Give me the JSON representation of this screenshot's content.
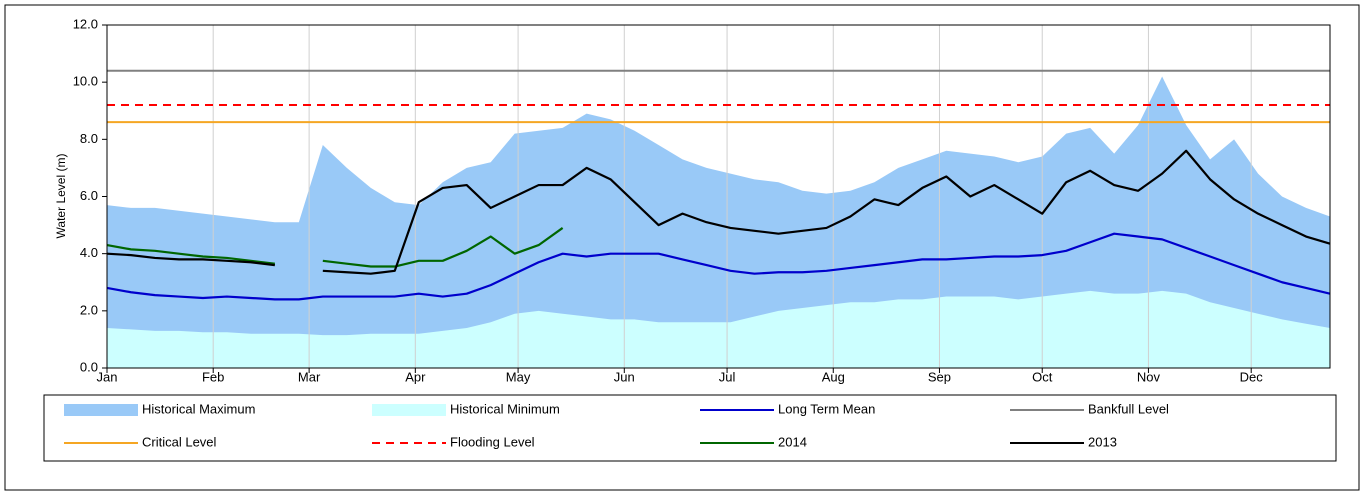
{
  "chart_data": {
    "type": "line",
    "y_label": "Water Level (m)",
    "x": [
      1,
      8,
      15,
      22,
      29,
      36,
      43,
      50,
      57,
      64,
      71,
      78,
      85,
      92,
      99,
      106,
      113,
      120,
      127,
      134,
      141,
      148,
      155,
      162,
      169,
      176,
      183,
      190,
      197,
      204,
      211,
      218,
      225,
      232,
      239,
      246,
      253,
      260,
      267,
      274,
      281,
      288,
      295,
      302,
      309,
      316,
      323,
      330,
      337,
      344,
      351,
      358
    ],
    "xlim": [
      1,
      358
    ],
    "xticks": [
      {
        "value": 1,
        "label": "Jan"
      },
      {
        "value": 32,
        "label": "Feb"
      },
      {
        "value": 60,
        "label": "Mar"
      },
      {
        "value": 91,
        "label": "Apr"
      },
      {
        "value": 121,
        "label": "May"
      },
      {
        "value": 152,
        "label": "Jun"
      },
      {
        "value": 182,
        "label": "Jul"
      },
      {
        "value": 213,
        "label": "Aug"
      },
      {
        "value": 244,
        "label": "Sep"
      },
      {
        "value": 274,
        "label": "Oct"
      },
      {
        "value": 305,
        "label": "Nov"
      },
      {
        "value": 335,
        "label": "Dec"
      }
    ],
    "ylim": [
      0,
      12
    ],
    "yticks": [
      {
        "value": 0,
        "label": "0.0"
      },
      {
        "value": 2,
        "label": "2.0"
      },
      {
        "value": 4,
        "label": "4.0"
      },
      {
        "value": 6,
        "label": "6.0"
      },
      {
        "value": 8,
        "label": "8.0"
      },
      {
        "value": 10,
        "label": "10.0"
      },
      {
        "value": 12,
        "label": "12.0"
      }
    ],
    "grid": "x",
    "series": [
      {
        "name": "Historical Maximum",
        "style": "area",
        "color": "#99c9f7",
        "values": [
          5.7,
          5.6,
          5.6,
          5.5,
          5.4,
          5.3,
          5.2,
          5.1,
          5.1,
          7.8,
          7.0,
          6.3,
          5.8,
          5.7,
          6.5,
          7.0,
          7.2,
          8.2,
          8.3,
          8.4,
          8.9,
          8.7,
          8.3,
          7.8,
          7.3,
          7.0,
          6.8,
          6.6,
          6.5,
          6.2,
          6.1,
          6.2,
          6.5,
          7.0,
          7.3,
          7.6,
          7.5,
          7.4,
          7.2,
          7.4,
          8.2,
          8.4,
          7.5,
          8.5,
          10.2,
          8.5,
          7.3,
          8.0,
          6.8,
          6.0,
          5.6,
          5.3
        ]
      },
      {
        "name": "Historical Minimum",
        "style": "area",
        "color": "#ccffff",
        "values": [
          1.4,
          1.35,
          1.3,
          1.3,
          1.25,
          1.25,
          1.2,
          1.2,
          1.2,
          1.15,
          1.15,
          1.2,
          1.2,
          1.2,
          1.3,
          1.4,
          1.6,
          1.9,
          2.0,
          1.9,
          1.8,
          1.7,
          1.7,
          1.6,
          1.6,
          1.6,
          1.6,
          1.8,
          2.0,
          2.1,
          2.2,
          2.3,
          2.3,
          2.4,
          2.4,
          2.5,
          2.5,
          2.5,
          2.4,
          2.5,
          2.6,
          2.7,
          2.6,
          2.6,
          2.7,
          2.6,
          2.3,
          2.1,
          1.9,
          1.7,
          1.55,
          1.4
        ]
      },
      {
        "name": "Long Term Mean",
        "style": "line",
        "color": "#0000cc",
        "values": [
          2.8,
          2.65,
          2.55,
          2.5,
          2.45,
          2.5,
          2.45,
          2.4,
          2.4,
          2.5,
          2.5,
          2.5,
          2.5,
          2.6,
          2.5,
          2.6,
          2.9,
          3.3,
          3.7,
          4.0,
          3.9,
          4.0,
          4.0,
          4.0,
          3.8,
          3.6,
          3.4,
          3.3,
          3.35,
          3.35,
          3.4,
          3.5,
          3.6,
          3.7,
          3.8,
          3.8,
          3.85,
          3.9,
          3.9,
          3.95,
          4.1,
          4.4,
          4.7,
          4.6,
          4.5,
          4.2,
          3.9,
          3.6,
          3.3,
          3.0,
          2.8,
          2.6
        ]
      },
      {
        "name": "Bankfull Level",
        "style": "hline",
        "color": "#808080",
        "value": 10.4
      },
      {
        "name": "Critical Level",
        "style": "hline",
        "color": "#f5a623",
        "value": 8.6
      },
      {
        "name": "Flooding Level",
        "style": "hline",
        "dashed": true,
        "color": "#ff0000",
        "value": 9.2
      },
      {
        "name": "2014",
        "style": "line",
        "color": "#006600",
        "values": [
          4.3,
          4.15,
          4.1,
          4.0,
          3.9,
          3.85,
          3.75,
          3.65,
          null,
          3.75,
          3.65,
          3.55,
          3.55,
          3.75,
          3.75,
          4.1,
          4.6,
          4.0,
          4.3,
          4.9,
          null,
          null,
          null,
          null,
          null,
          null,
          null,
          null,
          null,
          null,
          null,
          null,
          null,
          null,
          null,
          null,
          null,
          null,
          null,
          null,
          null,
          null,
          null,
          null,
          null,
          null,
          null,
          null,
          null,
          null,
          null,
          null
        ]
      },
      {
        "name": "2013",
        "style": "line",
        "color": "#000000",
        "values": [
          4.0,
          3.95,
          3.85,
          3.8,
          3.8,
          3.75,
          3.7,
          3.6,
          null,
          3.4,
          3.35,
          3.3,
          3.4,
          5.8,
          6.3,
          6.4,
          5.6,
          6.0,
          6.4,
          6.4,
          7.0,
          6.6,
          5.8,
          5.0,
          5.4,
          5.1,
          4.9,
          4.8,
          4.7,
          4.8,
          4.9,
          5.3,
          5.9,
          5.7,
          6.3,
          6.7,
          6.0,
          6.4,
          5.9,
          5.4,
          6.5,
          6.9,
          6.4,
          6.2,
          6.8,
          7.6,
          6.6,
          5.9,
          5.4,
          5.0,
          4.6,
          4.35
        ]
      }
    ]
  }
}
